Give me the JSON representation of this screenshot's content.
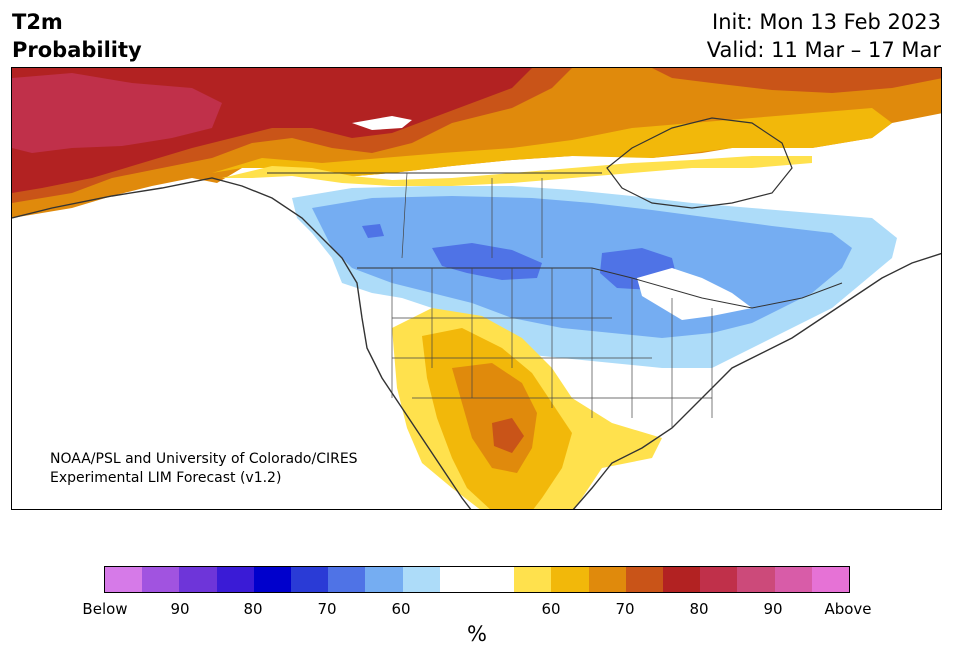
{
  "title": {
    "variable": "T2m",
    "subtitle": "Probability",
    "init": "Init: Mon 13 Feb 2023",
    "valid": "Valid: 11 Mar – 17 Mar"
  },
  "credit": {
    "line1": "NOAA/PSL and University of Colorado/CIRES",
    "line2": "Experimental LIM Forecast (v1.2)"
  },
  "colorbar": {
    "colors": [
      "#d67ae8",
      "#a153e0",
      "#6e35d9",
      "#3a1bd6",
      "#0000cc",
      "#2a3bd6",
      "#4f73e6",
      "#75adf2",
      "#addcf9",
      "#ffffff",
      "#ffffff",
      "#ffe14d",
      "#f2b80a",
      "#e08a0c",
      "#c95418",
      "#b22222",
      "#c0304a",
      "#cc4a7a",
      "#d85ca8",
      "#e672d6"
    ],
    "ticks": [
      "Below",
      "90",
      "80",
      "70",
      "60",
      "60",
      "70",
      "80",
      "90",
      "Above"
    ],
    "unit": "%"
  },
  "legend_colors": {
    "below_light": "#addcf9",
    "below_mid": "#75adf2",
    "below_strong": "#4f73e6",
    "above_light": "#ffe14d",
    "above_mid": "#f2b80a",
    "above_orange": "#e08a0c",
    "above_dark": "#c95418",
    "above_red": "#b22222",
    "above_crimson": "#c0304a"
  }
}
